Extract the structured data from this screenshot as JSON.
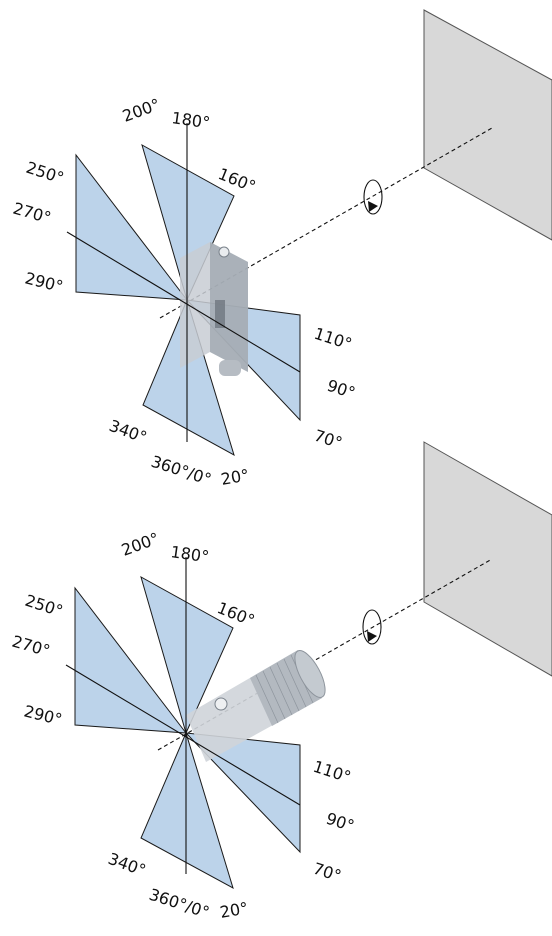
{
  "colors": {
    "sector_fill": "#bcd3ea",
    "sector_edge": "#1a1a1a",
    "target_fill": "#d8d8d8",
    "target_edge": "#555555",
    "sensor_body": "#c8cdd3",
    "sensor_shade": "#9aa2ab"
  },
  "diagrams": [
    {
      "sensor": "rectangular-sensor",
      "angles": [
        {
          "text": "200°"
        },
        {
          "text": "180°"
        },
        {
          "text": "160°"
        },
        {
          "text": "250°"
        },
        {
          "text": "270°"
        },
        {
          "text": "290°"
        },
        {
          "text": "110°"
        },
        {
          "text": "90°"
        },
        {
          "text": "70°"
        },
        {
          "text": "340°"
        },
        {
          "text": "360°/0°"
        },
        {
          "text": "20°"
        }
      ]
    },
    {
      "sensor": "cylindrical-sensor",
      "angles": [
        {
          "text": "200°"
        },
        {
          "text": "180°"
        },
        {
          "text": "160°"
        },
        {
          "text": "250°"
        },
        {
          "text": "270°"
        },
        {
          "text": "290°"
        },
        {
          "text": "110°"
        },
        {
          "text": "90°"
        },
        {
          "text": "70°"
        },
        {
          "text": "340°"
        },
        {
          "text": "360°/0°"
        },
        {
          "text": "20°"
        }
      ]
    }
  ]
}
